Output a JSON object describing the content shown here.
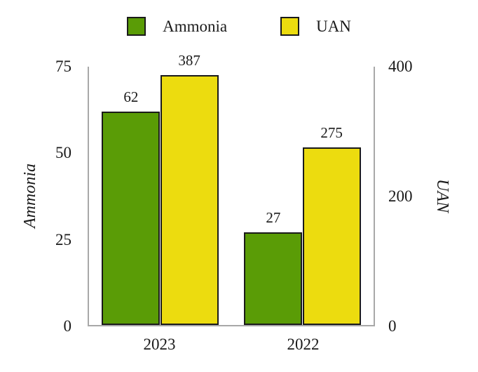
{
  "chart_data": {
    "type": "bar",
    "title": "",
    "categories": [
      "2023",
      "2022"
    ],
    "series": [
      {
        "name": "Ammonia",
        "axis": "left",
        "color": "#5a9c06",
        "values": [
          62,
          27
        ]
      },
      {
        "name": "UAN",
        "axis": "right",
        "color": "#ecdc0f",
        "values": [
          387,
          275
        ]
      }
    ],
    "left_axis": {
      "label": "Ammonia",
      "ticks": [
        0,
        25,
        50,
        75
      ],
      "min": 0,
      "max": 75
    },
    "right_axis": {
      "label": "UAN",
      "ticks": [
        0,
        200,
        400
      ],
      "min": 0,
      "max": 400
    },
    "legend": {
      "position": "top",
      "entries": [
        "Ammonia",
        "UAN"
      ]
    },
    "grid": false,
    "bar_outline_color": "#1a1a1a",
    "axis_line_color": "#a8a8a8",
    "value_labels_shown": true
  }
}
